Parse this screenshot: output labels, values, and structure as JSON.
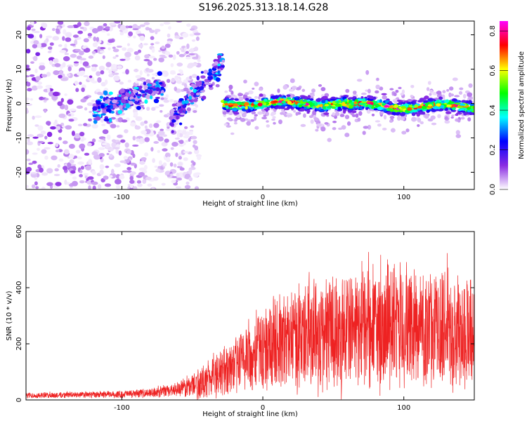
{
  "figure_title": "S196.2025.313.18.14.G28",
  "chart_data": [
    {
      "type": "heatmap",
      "title": "",
      "xlabel": "Height of straight line (km)",
      "ylabel": "Frequency (Hz)",
      "xlim": [
        -168,
        150
      ],
      "ylim": [
        -25,
        24
      ],
      "x_ticks": [
        -100,
        0,
        100
      ],
      "y_ticks": [
        -20,
        -10,
        0,
        10,
        20
      ],
      "colorbar": {
        "label": "Normalized spectral amplitude",
        "range": [
          0.0,
          0.85
        ],
        "ticks": [
          0.0,
          0.2,
          0.4,
          0.6,
          0.8
        ],
        "colormap": [
          "#ffffff",
          "#8a2be2",
          "#0000ff",
          "#00ffff",
          "#00ff00",
          "#ffff00",
          "#ff0000",
          "#ff00ff"
        ]
      },
      "features": {
        "trend_line_a": [
          [
            -120,
            -2
          ],
          [
            -70,
            5
          ]
        ],
        "trend_line_b": [
          [
            -65,
            -5
          ],
          [
            -28,
            12
          ]
        ],
        "line_peak_freq_hz": 0,
        "strong_signal_x_range": [
          -28,
          150
        ],
        "noise_x_range": [
          -168,
          -55
        ]
      }
    },
    {
      "type": "line",
      "title": "",
      "xlabel": "Height of straight line (km)",
      "ylabel": "SNR (10 * v/v)",
      "xlim": [
        -168,
        150
      ],
      "ylim": [
        0,
        600
      ],
      "x_ticks": [
        -100,
        0,
        100
      ],
      "y_ticks": [
        0,
        200,
        400,
        600
      ],
      "series": [
        {
          "name": "SNR",
          "color": "#ee2222",
          "envelope": {
            "x": [
              -168,
              -140,
              -100,
              -80,
              -60,
              -45,
              -30,
              -15,
              0,
              20,
              40,
              60,
              80,
              100,
              120,
              150
            ],
            "mean": [
              16,
              18,
              20,
              25,
              38,
              60,
              95,
              140,
              190,
              220,
              240,
              250,
              260,
              255,
              250,
              250
            ],
            "spread": [
              10,
              10,
              12,
              15,
              25,
              55,
              80,
              110,
              150,
              180,
              200,
              200,
              220,
              210,
              200,
              190
            ]
          }
        }
      ]
    }
  ]
}
